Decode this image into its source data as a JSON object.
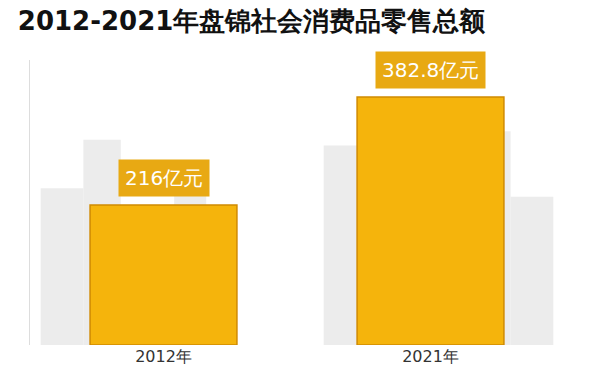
{
  "chart_data": {
    "type": "bar",
    "title": "2012-2021年盘锦社会消费品零售总额",
    "categories": [
      "2012年",
      "2021年"
    ],
    "values": [
      216,
      382.8
    ],
    "value_labels": [
      "216亿元",
      "382.8亿元"
    ],
    "data_labels": true,
    "color": "#f5b40c",
    "ylim": [
      0,
      440
    ],
    "tick_labels": "x",
    "grid": false
  }
}
